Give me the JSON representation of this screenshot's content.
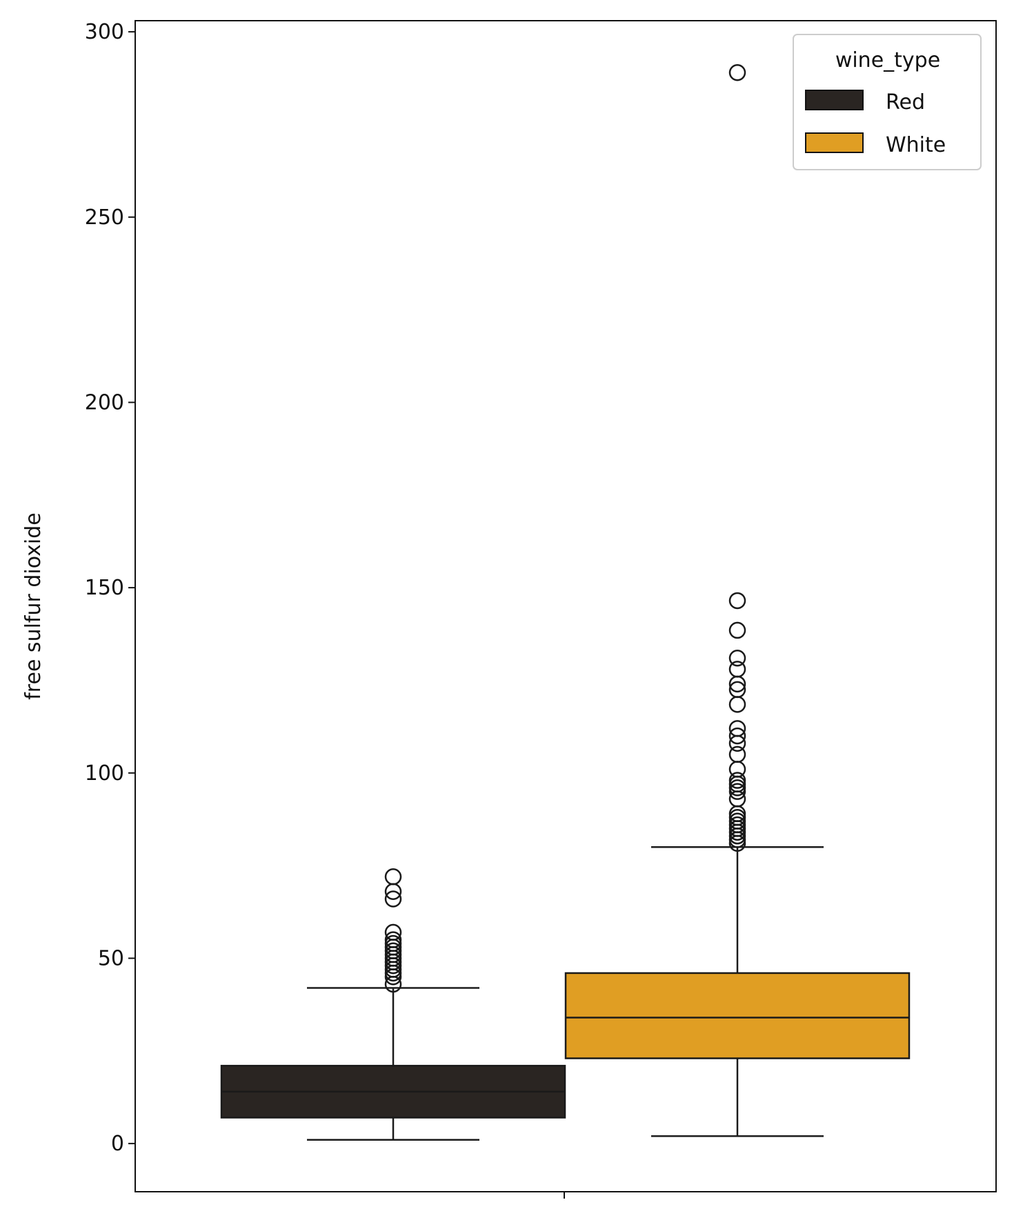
{
  "chart_data": {
    "type": "box",
    "title": "",
    "xlabel": "",
    "ylabel": "free sulfur dioxide",
    "ylim": [
      -13,
      303
    ],
    "yticks": [
      0,
      50,
      100,
      150,
      200,
      250,
      300
    ],
    "grid": false,
    "legend": {
      "title": "wine_type",
      "position": "top-right"
    },
    "series": [
      {
        "name": "Red",
        "color": "#2a2522",
        "whisker_low": 1,
        "q1": 7,
        "median": 14,
        "q3": 21,
        "whisker_high": 42,
        "outliers": [
          43,
          45,
          46,
          47,
          48,
          49,
          50,
          51,
          52,
          53,
          54,
          55,
          57,
          66,
          68,
          72
        ]
      },
      {
        "name": "White",
        "color": "#e09e23",
        "whisker_low": 2,
        "q1": 23,
        "median": 34,
        "q3": 46,
        "whisker_high": 80,
        "outliers": [
          81,
          82,
          83,
          84,
          85,
          86,
          87,
          88,
          89,
          93,
          95,
          96,
          97,
          98,
          101,
          105,
          108,
          110,
          112,
          118.5,
          122.5,
          124,
          128,
          131,
          138.5,
          146.5,
          289
        ]
      }
    ]
  }
}
